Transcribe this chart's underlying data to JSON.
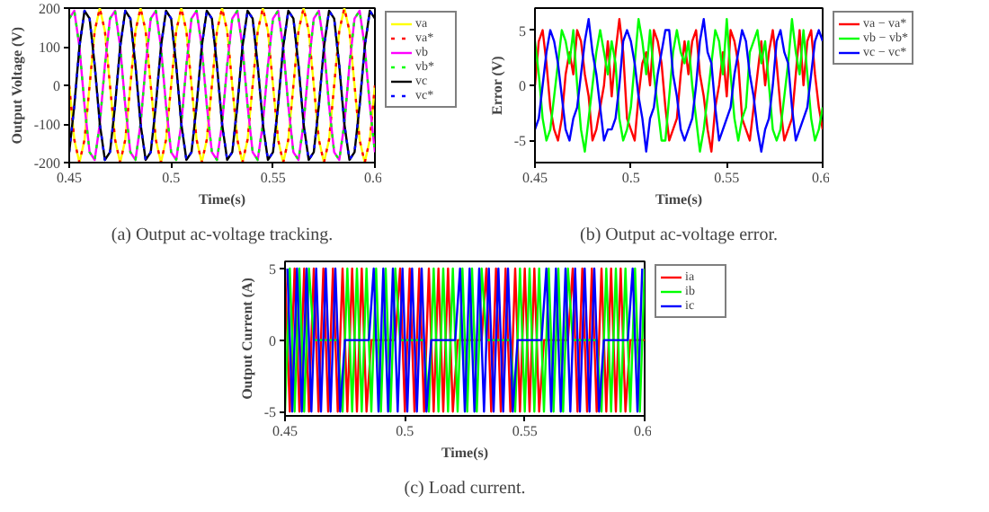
{
  "chart_data": [
    {
      "type": "line",
      "title": "(a) Output ac-voltage tracking.",
      "xlabel": "Time(s)",
      "ylabel": "Output Voltage (V)",
      "xlim": [
        0.45,
        0.6
      ],
      "ylim": [
        -200,
        200
      ],
      "xticks": [
        0.45,
        0.5,
        0.55,
        0.6
      ],
      "yticks": [
        -200,
        -100,
        0,
        100,
        200
      ],
      "legend": "right",
      "grid": false,
      "x": [
        0.45,
        0.4525,
        0.455,
        0.4575,
        0.46,
        0.4625,
        0.465,
        0.4675,
        0.47,
        0.4725,
        0.475,
        0.4775,
        0.48,
        0.4825,
        0.485,
        0.4875,
        0.49,
        0.4925,
        0.495,
        0.4975,
        0.5,
        0.5025,
        0.505,
        0.5075,
        0.51,
        0.5125,
        0.515,
        0.5175,
        0.52,
        0.5225,
        0.525,
        0.5275,
        0.53,
        0.5325,
        0.535,
        0.5375,
        0.54,
        0.5425,
        0.545,
        0.5475,
        0.55,
        0.5525,
        0.555,
        0.5575,
        0.56,
        0.5625,
        0.565,
        0.5675,
        0.57,
        0.5725,
        0.575,
        0.5775,
        0.58,
        0.5825,
        0.585,
        0.5875,
        0.59,
        0.5925,
        0.595,
        0.5975,
        0.6
      ],
      "series": [
        {
          "name": "va",
          "color": "#ffff00",
          "line_style": "solid",
          "values": [
            0,
            -141,
            -200,
            -141,
            0,
            141,
            200,
            141,
            0,
            -141,
            -200,
            -141,
            0,
            141,
            200,
            141,
            0,
            -141,
            -200,
            -141,
            0,
            141,
            200,
            141,
            0,
            -141,
            -200,
            -141,
            0,
            141,
            200,
            141,
            0,
            -141,
            -200,
            -141,
            0,
            141,
            200,
            141,
            0,
            -141,
            -200,
            -141,
            0,
            141,
            200,
            141,
            0,
            -141,
            -200,
            -141,
            0,
            141,
            200,
            141,
            0,
            -141,
            -200,
            -141,
            0
          ]
        },
        {
          "name": "va*",
          "color": "#ff0000",
          "line_style": "dotted",
          "values": [
            0,
            -141,
            -200,
            -141,
            0,
            141,
            200,
            141,
            0,
            -141,
            -200,
            -141,
            0,
            141,
            200,
            141,
            0,
            -141,
            -200,
            -141,
            0,
            141,
            200,
            141,
            0,
            -141,
            -200,
            -141,
            0,
            141,
            200,
            141,
            0,
            -141,
            -200,
            -141,
            0,
            141,
            200,
            141,
            0,
            -141,
            -200,
            -141,
            0,
            141,
            200,
            141,
            0,
            -141,
            -200,
            -141,
            0,
            141,
            200,
            141,
            0,
            -141,
            -200,
            -141,
            0
          ]
        },
        {
          "name": "vb",
          "color": "#ff00ff",
          "line_style": "solid",
          "values": [
            173,
            193,
            100,
            -52,
            -173,
            -193,
            -100,
            52,
            173,
            193,
            100,
            -52,
            -173,
            -193,
            -100,
            52,
            173,
            193,
            100,
            -52,
            -173,
            -193,
            -100,
            52,
            173,
            193,
            100,
            -52,
            -173,
            -193,
            -100,
            52,
            173,
            193,
            100,
            -52,
            -173,
            -193,
            -100,
            52,
            173,
            193,
            100,
            -52,
            -173,
            -193,
            -100,
            52,
            173,
            193,
            100,
            -52,
            -173,
            -193,
            -100,
            52,
            173,
            193,
            100,
            -52,
            -173
          ]
        },
        {
          "name": "vb*",
          "color": "#00ff00",
          "line_style": "dotted",
          "values": [
            173,
            193,
            100,
            -52,
            -173,
            -193,
            -100,
            52,
            173,
            193,
            100,
            -52,
            -173,
            -193,
            -100,
            52,
            173,
            193,
            100,
            -52,
            -173,
            -193,
            -100,
            52,
            173,
            193,
            100,
            -52,
            -173,
            -193,
            -100,
            52,
            173,
            193,
            100,
            -52,
            -173,
            -193,
            -100,
            52,
            173,
            193,
            100,
            -52,
            -173,
            -193,
            -100,
            52,
            173,
            193,
            100,
            -52,
            -173,
            -193,
            -100,
            52,
            173,
            193,
            100,
            -52,
            -173
          ]
        },
        {
          "name": "vc",
          "color": "#000000",
          "line_style": "solid",
          "values": [
            -173,
            -52,
            100,
            193,
            173,
            52,
            -100,
            -193,
            -173,
            -52,
            100,
            193,
            173,
            52,
            -100,
            -193,
            -173,
            -52,
            100,
            193,
            173,
            52,
            -100,
            -193,
            -173,
            -52,
            100,
            193,
            173,
            52,
            -100,
            -193,
            -173,
            -52,
            100,
            193,
            173,
            52,
            -100,
            -193,
            -173,
            -52,
            100,
            193,
            173,
            52,
            -100,
            -193,
            -173,
            -52,
            100,
            193,
            173,
            52,
            -100,
            -193,
            -173,
            -52,
            100,
            193,
            173
          ]
        },
        {
          "name": "vc*",
          "color": "#0000ff",
          "line_style": "dotted",
          "values": [
            -173,
            -52,
            100,
            193,
            173,
            52,
            -100,
            -193,
            -173,
            -52,
            100,
            193,
            173,
            52,
            -100,
            -193,
            -173,
            -52,
            100,
            193,
            173,
            52,
            -100,
            -193,
            -173,
            -52,
            100,
            193,
            173,
            52,
            -100,
            -193,
            -173,
            -52,
            100,
            193,
            173,
            52,
            -100,
            -193,
            -173,
            -52,
            100,
            193,
            173,
            52,
            -100,
            -193,
            -173,
            -52,
            100,
            193,
            173,
            52,
            -100,
            -193,
            -173,
            -52,
            100,
            193,
            173
          ]
        }
      ]
    },
    {
      "type": "line",
      "title": "(b) Output ac-voltage error.",
      "xlabel": "Time(s)",
      "ylabel": "Error (V)",
      "xlim": [
        0.45,
        0.6
      ],
      "ylim": [
        -7,
        7
      ],
      "xticks": [
        0.45,
        0.5,
        0.55,
        0.6
      ],
      "yticks": [
        -5,
        0,
        5
      ],
      "legend": "right",
      "grid": false,
      "x": [
        0.45,
        0.452,
        0.454,
        0.456,
        0.458,
        0.46,
        0.462,
        0.464,
        0.466,
        0.468,
        0.47,
        0.472,
        0.474,
        0.476,
        0.478,
        0.48,
        0.482,
        0.484,
        0.486,
        0.488,
        0.49,
        0.492,
        0.494,
        0.496,
        0.498,
        0.5,
        0.502,
        0.504,
        0.506,
        0.508,
        0.51,
        0.512,
        0.514,
        0.516,
        0.518,
        0.52,
        0.522,
        0.524,
        0.526,
        0.528,
        0.53,
        0.532,
        0.534,
        0.536,
        0.538,
        0.54,
        0.542,
        0.544,
        0.546,
        0.548,
        0.55,
        0.552,
        0.554,
        0.556,
        0.558,
        0.56,
        0.562,
        0.564,
        0.566,
        0.568,
        0.57,
        0.572,
        0.574,
        0.576,
        0.578,
        0.58,
        0.582,
        0.584,
        0.586,
        0.588,
        0.59,
        0.592,
        0.594,
        0.596,
        0.598,
        0.6
      ],
      "series": [
        {
          "name": "va − va*",
          "color": "#ff0000",
          "values": [
            0,
            4,
            5,
            2,
            -2,
            -4,
            -5,
            -3,
            1,
            3,
            1,
            5,
            4,
            1,
            -1,
            -5,
            -4,
            -2,
            0,
            4,
            -1,
            3,
            6,
            3,
            -3,
            -4,
            -5,
            -1,
            2,
            3,
            0,
            5,
            4,
            2,
            -2,
            -5,
            -4,
            -3,
            1,
            4,
            1,
            4,
            5,
            1,
            -1,
            -4,
            -6,
            -2,
            0,
            3,
            -1,
            5,
            4,
            2,
            -3,
            -4,
            -5,
            -2,
            1,
            4,
            0,
            3,
            5,
            2,
            -2,
            -5,
            -4,
            -3,
            1,
            5,
            0,
            4,
            5,
            1,
            -2,
            -4
          ]
        },
        {
          "name": "vb − vb*",
          "color": "#00ff00",
          "values": [
            4,
            1,
            -3,
            -5,
            -4,
            -1,
            2,
            5,
            4,
            2,
            5,
            0,
            -4,
            -6,
            -3,
            0,
            3,
            5,
            3,
            1,
            4,
            2,
            -3,
            -5,
            -4,
            -2,
            2,
            6,
            4,
            1,
            5,
            1,
            -2,
            -5,
            -5,
            -1,
            3,
            5,
            3,
            2,
            4,
            0,
            -3,
            -6,
            -4,
            -1,
            2,
            5,
            4,
            1,
            6,
            1,
            -3,
            -5,
            -3,
            -2,
            3,
            4,
            5,
            2,
            4,
            0,
            -4,
            -5,
            -4,
            -1,
            2,
            6,
            3,
            1,
            5,
            1,
            -3,
            -5,
            -4,
            -2
          ]
        },
        {
          "name": "vc − vc*",
          "color": "#0000ff",
          "values": [
            -4,
            -3,
            0,
            3,
            5,
            4,
            2,
            -1,
            -4,
            -5,
            -3,
            -2,
            1,
            4,
            6,
            3,
            1,
            -2,
            -5,
            -4,
            -4,
            -3,
            0,
            4,
            5,
            4,
            2,
            -1,
            -3,
            -6,
            -3,
            -2,
            1,
            3,
            5,
            5,
            1,
            -1,
            -4,
            -5,
            -4,
            -3,
            0,
            4,
            6,
            3,
            2,
            -2,
            -5,
            -4,
            -3,
            -2,
            1,
            3,
            5,
            4,
            1,
            -1,
            -4,
            -6,
            -4,
            -3,
            0,
            4,
            5,
            3,
            2,
            -2,
            -5,
            -4,
            -3,
            -2,
            1,
            4,
            5,
            4
          ]
        }
      ]
    },
    {
      "type": "line",
      "title": "(c) Load current.",
      "xlabel": "Time(s)",
      "ylabel": "Output Current (A)",
      "xlim": [
        0.45,
        0.6
      ],
      "ylim": [
        -5.3,
        5.5
      ],
      "xticks": [
        0.45,
        0.5,
        0.55,
        0.6
      ],
      "yticks": [
        -5,
        0,
        5
      ],
      "legend": "right",
      "grid": false,
      "x": [
        0.45,
        0.452,
        0.454,
        0.456,
        0.458,
        0.46,
        0.462,
        0.464,
        0.466,
        0.468,
        0.47,
        0.472,
        0.474,
        0.476,
        0.478,
        0.48,
        0.482,
        0.484,
        0.486,
        0.488,
        0.49,
        0.492,
        0.494,
        0.496,
        0.498,
        0.5,
        0.502,
        0.504,
        0.506,
        0.508,
        0.51,
        0.512,
        0.514,
        0.516,
        0.518,
        0.52,
        0.522,
        0.524,
        0.526,
        0.528,
        0.53,
        0.532,
        0.534,
        0.536,
        0.538,
        0.54,
        0.542,
        0.544,
        0.546,
        0.548,
        0.55,
        0.552,
        0.554,
        0.556,
        0.558,
        0.56,
        0.562,
        0.564,
        0.566,
        0.568,
        0.57,
        0.572,
        0.574,
        0.576,
        0.578,
        0.58,
        0.582,
        0.584,
        0.586,
        0.588,
        0.59,
        0.592,
        0.594,
        0.596,
        0.598,
        0.6
      ],
      "series": [
        {
          "name": "ia",
          "color": "#ff0000",
          "values": [
            5,
            -5,
            5,
            -5,
            5,
            -5,
            5,
            -5,
            5,
            -5,
            5,
            -5,
            5,
            -5,
            5,
            -5,
            5,
            -5,
            0,
            0,
            0,
            0,
            0,
            0,
            5,
            -5,
            5,
            -5,
            5,
            -5,
            5,
            -5,
            5,
            -5,
            5,
            -5,
            0,
            0,
            0,
            0,
            0,
            0,
            5,
            -5,
            5,
            -5,
            5,
            -5,
            5,
            -5,
            5,
            -5,
            5,
            -5,
            0,
            0,
            0,
            0,
            0,
            0,
            5,
            -5,
            5,
            -5,
            5,
            -5,
            5,
            -5,
            5,
            -5,
            5,
            -5,
            0,
            0,
            0,
            0
          ]
        },
        {
          "name": "ib",
          "color": "#00ff00",
          "values": [
            -5,
            5,
            -5,
            5,
            -5,
            5,
            0,
            0,
            0,
            0,
            0,
            0,
            -5,
            5,
            -5,
            5,
            -5,
            5,
            -5,
            5,
            -5,
            5,
            -5,
            5,
            0,
            0,
            0,
            0,
            0,
            0,
            -5,
            5,
            -5,
            5,
            -5,
            5,
            -5,
            5,
            -5,
            5,
            -5,
            5,
            0,
            0,
            0,
            0,
            0,
            0,
            -5,
            5,
            -5,
            5,
            -5,
            5,
            -5,
            5,
            -5,
            5,
            -5,
            5,
            0,
            0,
            0,
            0,
            0,
            0,
            -5,
            5,
            -5,
            5,
            -5,
            5,
            -5,
            5,
            -5,
            5
          ]
        },
        {
          "name": "ic",
          "color": "#0000ff",
          "x": [
            0.451,
            0.453,
            0.455,
            0.457,
            0.459,
            0.461,
            0.463,
            0.465,
            0.467,
            0.469,
            0.471,
            0.473,
            0.475,
            0.477,
            0.479,
            0.481,
            0.483,
            0.485,
            0.487,
            0.489,
            0.491,
            0.493,
            0.495,
            0.497,
            0.499,
            0.501,
            0.503,
            0.505,
            0.507,
            0.509,
            0.511,
            0.513,
            0.515,
            0.517,
            0.519,
            0.521,
            0.523,
            0.525,
            0.527,
            0.529,
            0.531,
            0.533,
            0.535,
            0.537,
            0.539,
            0.541,
            0.543,
            0.545,
            0.547,
            0.549,
            0.551,
            0.553,
            0.555,
            0.557,
            0.559,
            0.561,
            0.563,
            0.565,
            0.567,
            0.569,
            0.571,
            0.573,
            0.575,
            0.577,
            0.579,
            0.581,
            0.583,
            0.585,
            0.587,
            0.589,
            0.591,
            0.593,
            0.595,
            0.597,
            0.599
          ],
          "values": [
            5,
            -5,
            5,
            -5,
            5,
            -5,
            5,
            -5,
            5,
            -5,
            5,
            -5,
            0,
            0,
            0,
            0,
            0,
            0,
            5,
            -5,
            5,
            -5,
            5,
            -5,
            5,
            -5,
            5,
            -5,
            5,
            -5,
            0,
            0,
            0,
            0,
            0,
            0,
            5,
            -5,
            5,
            -5,
            5,
            -5,
            5,
            -5,
            5,
            -5,
            5,
            -5,
            0,
            0,
            0,
            0,
            0,
            0,
            5,
            -5,
            5,
            -5,
            5,
            -5,
            5,
            -5,
            5,
            -5,
            5,
            -5,
            0,
            0,
            0,
            0,
            0,
            0,
            5,
            -5,
            5
          ]
        }
      ]
    }
  ]
}
